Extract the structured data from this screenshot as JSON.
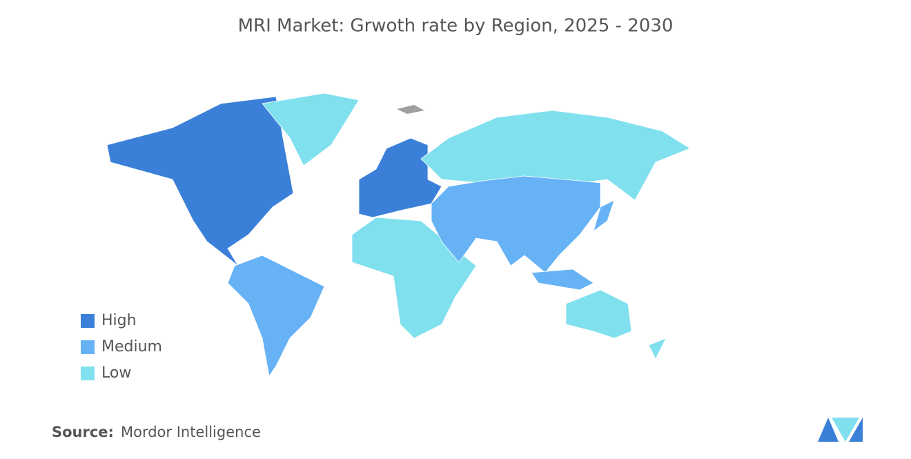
{
  "title": "MRI Market: Grwoth rate by Region, 2025 - 2030",
  "legend": [
    {
      "label": "High",
      "color": "#3b80d8"
    },
    {
      "label": "Medium",
      "color": "#66b2f5"
    },
    {
      "label": "Low",
      "color": "#80e0ee"
    }
  ],
  "source": {
    "label": "Source:",
    "text": "Mordor Intelligence"
  }
}
